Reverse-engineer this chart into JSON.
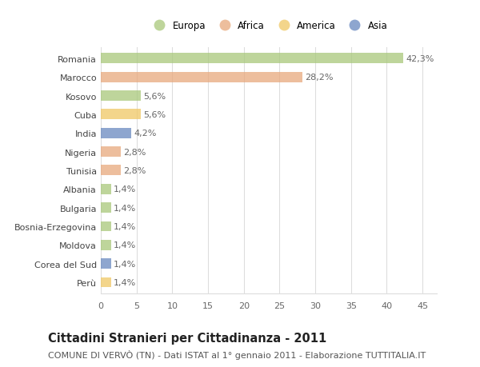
{
  "categories": [
    "Romania",
    "Marocco",
    "Kosovo",
    "Cuba",
    "India",
    "Nigeria",
    "Tunisia",
    "Albania",
    "Bulgaria",
    "Bosnia-Erzegovina",
    "Moldova",
    "Corea del Sud",
    "Perù"
  ],
  "values": [
    42.3,
    28.2,
    5.6,
    5.6,
    4.2,
    2.8,
    2.8,
    1.4,
    1.4,
    1.4,
    1.4,
    1.4,
    1.4
  ],
  "labels": [
    "42,3%",
    "28,2%",
    "5,6%",
    "5,6%",
    "4,2%",
    "2,8%",
    "2,8%",
    "1,4%",
    "1,4%",
    "1,4%",
    "1,4%",
    "1,4%",
    "1,4%"
  ],
  "continents": [
    "Europa",
    "Africa",
    "Europa",
    "America",
    "Asia",
    "Africa",
    "Africa",
    "Europa",
    "Europa",
    "Europa",
    "Europa",
    "Asia",
    "America"
  ],
  "continent_colors": {
    "Europa": "#a8c87a",
    "Africa": "#e8a87c",
    "America": "#f0c864",
    "Asia": "#6888c0"
  },
  "legend_order": [
    "Europa",
    "Africa",
    "America",
    "Asia"
  ],
  "background_color": "#ffffff",
  "grid_color": "#dddddd",
  "xlim": [
    0,
    47
  ],
  "xticks": [
    0,
    5,
    10,
    15,
    20,
    25,
    30,
    35,
    40,
    45
  ],
  "title": "Cittadini Stranieri per Cittadinanza - 2011",
  "subtitle": "COMUNE DI VERVÒ (TN) - Dati ISTAT al 1° gennaio 2011 - Elaborazione TUTTITALIA.IT",
  "title_fontsize": 10.5,
  "subtitle_fontsize": 8,
  "label_fontsize": 8,
  "tick_fontsize": 8,
  "bar_alpha": 0.75,
  "bar_height": 0.55
}
